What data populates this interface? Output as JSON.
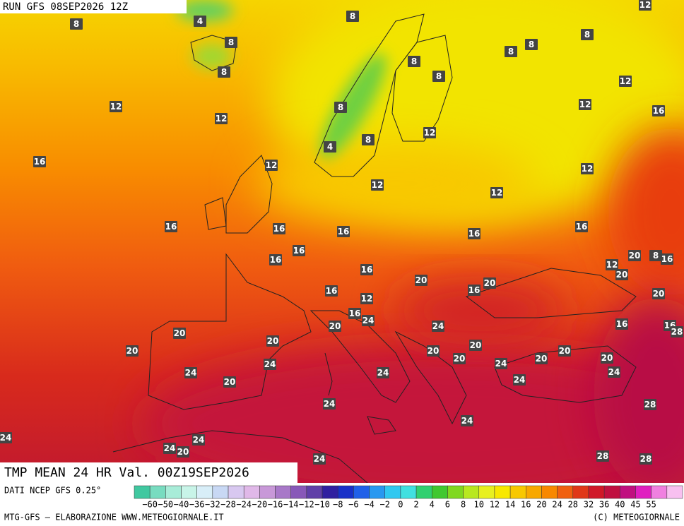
{
  "header": {
    "run": "RUN GFS 08SEP2026 12Z"
  },
  "map": {
    "contour_labels": [
      12,
      8,
      4,
      8,
      8,
      8,
      8,
      8,
      8,
      8,
      8,
      12,
      12,
      12,
      8,
      12,
      16,
      8,
      4,
      12,
      16,
      12,
      12,
      12,
      12,
      16,
      16,
      16,
      16,
      16,
      16,
      16,
      20,
      8,
      16,
      12,
      20,
      16,
      20,
      20,
      16,
      16,
      12,
      20,
      16,
      24,
      20,
      24,
      16,
      16,
      28,
      20,
      20,
      20,
      20,
      20,
      20,
      20,
      20,
      20,
      24,
      24,
      24,
      24,
      24,
      20,
      24,
      24,
      28,
      24,
      24,
      24,
      24,
      20,
      28,
      28,
      24
    ]
  },
  "footer": {
    "title": "TMP MEAN 24 HR Val. 00Z19SEP2026",
    "source": "DATI NCEP GFS 0.25°",
    "credit": "MTG-GFS — ELABORAZIONE WWW.METEOGIORNALE.IT",
    "copyright": "(C) METEOGIORNALE"
  },
  "scale": {
    "labels": [
      "−60",
      "−50",
      "−40",
      "−36",
      "−32",
      "−28",
      "−24",
      "−20",
      "−16",
      "−14",
      "−12",
      "−10",
      "−8",
      "−6",
      "−4",
      "−2",
      "0",
      "2",
      "4",
      "6",
      "8",
      "10",
      "12",
      "14",
      "16",
      "20",
      "24",
      "28",
      "32",
      "36",
      "40",
      "45",
      "55"
    ],
    "colors": [
      "#40c8a0",
      "#78dcc0",
      "#a8ecd8",
      "#c8f4e8",
      "#d8eef8",
      "#c8d8f4",
      "#d8c8f0",
      "#e0b8e8",
      "#c898d8",
      "#a878c8",
      "#8858b8",
      "#6040a8",
      "#3020a0",
      "#1830c8",
      "#2060e8",
      "#2898f0",
      "#30c8f0",
      "#40e0e0",
      "#30d070",
      "#40c830",
      "#80d820",
      "#b8e820",
      "#e8f020",
      "#f8e800",
      "#f8c800",
      "#f8a800",
      "#f88800",
      "#f06010",
      "#e03818",
      "#d01828",
      "#c01040",
      "#c01080",
      "#e020c0",
      "#f080e0",
      "#f8c0f0"
    ]
  }
}
